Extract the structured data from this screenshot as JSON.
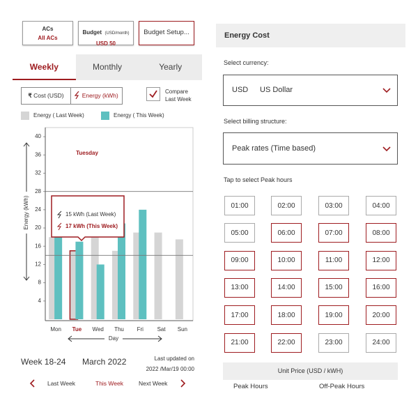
{
  "filters": {
    "acs": {
      "label": "ACs",
      "value": "All ACs"
    },
    "budget": {
      "label": "Budget",
      "unit": "(USD/month)",
      "value": "USD 50"
    },
    "setup": "Budget Setup..."
  },
  "tabs": [
    "Weekly",
    "Monthly",
    "Yearly"
  ],
  "toggle": {
    "cost_icon": "₹",
    "cost": "Cost (USD)",
    "energy": "Energy (kWh)"
  },
  "compare": {
    "label": "Compare Last Week",
    "checked": true
  },
  "chart_data": {
    "type": "bar",
    "categories": [
      "Mon",
      "Tue",
      "Wed",
      "Thu",
      "Fri",
      "Sat",
      "Sun"
    ],
    "series": [
      {
        "name": "Energy ( Last Week)",
        "color": "#d5d5d5",
        "values": [
          18,
          15,
          18,
          15,
          19,
          19,
          17.5
        ]
      },
      {
        "name": "Energy ( This Week)",
        "color": "#5ec0c0",
        "values": [
          20,
          17,
          12,
          21,
          24,
          null,
          null
        ]
      }
    ],
    "ylim": [
      0,
      42
    ],
    "yticks": [
      4,
      8,
      12,
      16,
      20,
      24,
      28,
      32,
      36,
      40
    ],
    "ylabel": "Energy (kWh)",
    "xlabel": "Day",
    "grid": false,
    "reference_lines": [
      28,
      14
    ],
    "selected_index": 1,
    "annotation": "Tuesday",
    "tooltip": [
      "15 kWh (Last Week)",
      "17 kWh (This Week)"
    ]
  },
  "period": {
    "week": "Week 18-24",
    "month": "March 2022",
    "updated_label": "Last updated on",
    "updated": "2022 /Mar/19 00:00"
  },
  "nav": {
    "prev": "Last Week",
    "current": "This Week",
    "next": "Next Week"
  },
  "energy_cost": {
    "title": "Energy Cost",
    "currency_label": "Select currency:",
    "currency_code": "USD",
    "currency_name": "US Dollar",
    "billing_label": "Select billing structure:",
    "billing_value": "Peak rates (Time based)",
    "peak_label": "Tap to select Peak hours",
    "hours": [
      {
        "label": "01:00",
        "selected": false
      },
      {
        "label": "02:00",
        "selected": false
      },
      {
        "label": "03:00",
        "selected": false
      },
      {
        "label": "04:00",
        "selected": false
      },
      {
        "label": "05:00",
        "selected": false
      },
      {
        "label": "06:00",
        "selected": true
      },
      {
        "label": "07:00",
        "selected": true
      },
      {
        "label": "08:00",
        "selected": true
      },
      {
        "label": "09:00",
        "selected": true
      },
      {
        "label": "10:00",
        "selected": true
      },
      {
        "label": "11:00",
        "selected": true
      },
      {
        "label": "12:00",
        "selected": true
      },
      {
        "label": "13:00",
        "selected": true
      },
      {
        "label": "14:00",
        "selected": true
      },
      {
        "label": "15:00",
        "selected": true
      },
      {
        "label": "16:00",
        "selected": true
      },
      {
        "label": "17:00",
        "selected": true
      },
      {
        "label": "18:00",
        "selected": true
      },
      {
        "label": "19:00",
        "selected": true
      },
      {
        "label": "20:00",
        "selected": true
      },
      {
        "label": "21:00",
        "selected": true
      },
      {
        "label": "22:00",
        "selected": true
      },
      {
        "label": "23:00",
        "selected": false
      },
      {
        "label": "24:00",
        "selected": false
      }
    ],
    "table_title": "Unit Price (USD / kWH)",
    "table_columns": [
      "Peak Hours",
      "Off-Peak Hours"
    ]
  }
}
